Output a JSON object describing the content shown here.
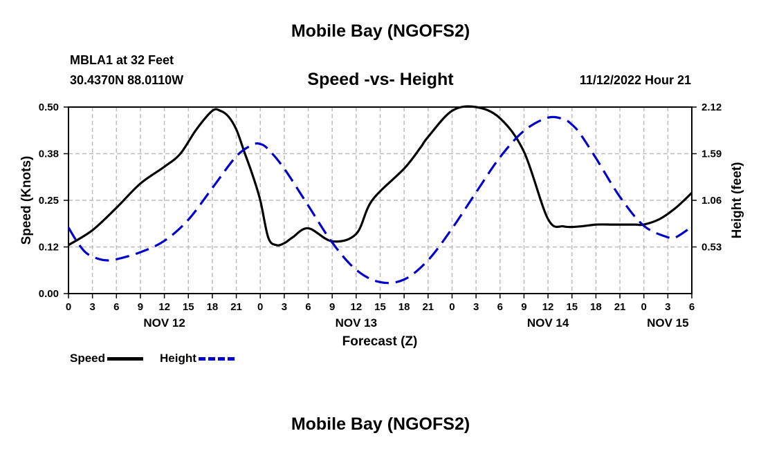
{
  "page": {
    "title": "Mobile Bay (NGOFS2)",
    "title_bottom": "Mobile Bay (NGOFS2)",
    "station": "MBLA1 at 32 Feet",
    "coords": "30.4370N  88.0110W",
    "datetime": "11/12/2022 Hour 21"
  },
  "colors": {
    "speed": "#000000",
    "height": "#0000cc",
    "grid": "#bbbbbb"
  },
  "chart_data": {
    "type": "line",
    "title": "Speed -vs- Height",
    "xlabel": "Forecast (Z)",
    "ylabel": "Speed (Knots)",
    "y2label": "Height (feet)",
    "xlim": [
      0,
      78
    ],
    "ylim": [
      0,
      0.5
    ],
    "y2lim": [
      0,
      2.12
    ],
    "x_tick_hours": [
      0,
      3,
      6,
      9,
      12,
      15,
      18,
      21,
      24,
      27,
      30,
      33,
      36,
      39,
      42,
      45,
      48,
      51,
      54,
      57,
      60,
      63,
      66,
      69,
      72,
      75,
      78
    ],
    "x_tick_labels": [
      "0",
      "3",
      "6",
      "9",
      "12",
      "15",
      "18",
      "21",
      "0",
      "3",
      "6",
      "9",
      "12",
      "15",
      "18",
      "21",
      "0",
      "3",
      "6",
      "9",
      "12",
      "15",
      "18",
      "21",
      "0",
      "3",
      "6"
    ],
    "date_labels": [
      {
        "hour": 12,
        "label": "NOV 12"
      },
      {
        "hour": 36,
        "label": "NOV 13"
      },
      {
        "hour": 60,
        "label": "NOV 14"
      },
      {
        "hour": 75,
        "label": "NOV 15"
      }
    ],
    "y_ticks": [
      0.0,
      0.125,
      0.25,
      0.375,
      0.5
    ],
    "y_tick_labels": [
      "0.00",
      "0.12",
      "0.25",
      "0.38",
      "0.50"
    ],
    "y2_ticks": [
      0.53,
      1.06,
      1.59,
      2.12
    ],
    "y2_tick_labels": [
      "0.53",
      "1.06",
      "1.59",
      "2.12"
    ],
    "grid": true,
    "legend": "bottom-left",
    "series": [
      {
        "name": "Speed",
        "axis": "left",
        "style": "solid",
        "x": [
          0,
          3,
          6,
          9,
          12,
          14,
          16,
          18,
          19,
          20,
          21,
          22,
          23,
          24,
          25,
          26,
          27,
          28,
          30,
          33,
          36,
          38,
          42,
          44,
          45,
          48,
          51,
          54,
          57,
          60,
          62,
          64,
          66,
          68,
          69,
          70,
          71,
          72,
          74,
          76,
          78
        ],
        "values": [
          0.13,
          0.17,
          0.23,
          0.295,
          0.34,
          0.375,
          0.44,
          0.49,
          0.49,
          0.475,
          0.44,
          0.38,
          0.32,
          0.25,
          0.15,
          0.13,
          0.135,
          0.15,
          0.175,
          0.14,
          0.16,
          0.25,
          0.335,
          0.39,
          0.42,
          0.49,
          0.5,
          0.47,
          0.38,
          0.2,
          0.18,
          0.18,
          0.185,
          0.185,
          0.185,
          0.185,
          0.185,
          0.185,
          0.2,
          0.23,
          0.27
        ]
      },
      {
        "name": "Height",
        "axis": "right",
        "values_unit": "feet",
        "style": "dashed",
        "x": [
          0,
          1,
          2,
          3,
          4.5,
          6,
          9,
          12,
          15,
          18,
          21,
          23,
          24,
          25,
          27,
          30,
          33,
          36,
          39,
          42,
          45,
          48,
          51,
          54,
          57,
          60,
          62,
          63,
          64,
          66,
          69,
          72,
          75,
          76,
          78
        ],
        "values": [
          0.75,
          0.6,
          0.48,
          0.42,
          0.38,
          0.39,
          0.47,
          0.6,
          0.84,
          1.2,
          1.56,
          1.69,
          1.7,
          1.64,
          1.42,
          1.0,
          0.58,
          0.27,
          0.13,
          0.16,
          0.38,
          0.74,
          1.15,
          1.55,
          1.85,
          2.0,
          1.98,
          1.92,
          1.82,
          1.54,
          1.1,
          0.77,
          0.64,
          0.64,
          0.76
        ]
      }
    ]
  }
}
